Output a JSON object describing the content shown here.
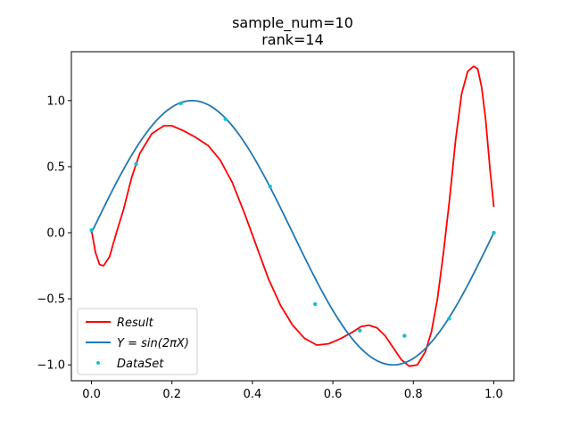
{
  "chart_data": {
    "type": "line",
    "title": "sample_num=10",
    "subtitle": "rank=14",
    "xlabel": "",
    "ylabel": "",
    "xlim": [
      -0.05,
      1.05
    ],
    "ylim": [
      -1.12,
      1.37
    ],
    "xticks": [
      0.0,
      0.2,
      0.4,
      0.6,
      0.8,
      1.0
    ],
    "xtick_labels": [
      "0.0",
      "0.2",
      "0.4",
      "0.6",
      "0.8",
      "1.0"
    ],
    "yticks": [
      -1.0,
      -0.5,
      0.0,
      0.5,
      1.0
    ],
    "ytick_labels": [
      "−1.0",
      "−0.5",
      "0.0",
      "0.5",
      "1.0"
    ],
    "grid": false,
    "legend_position": "lower-left",
    "series": [
      {
        "name": "Result",
        "kind": "line",
        "color": "#ff0000",
        "x": [
          0.0,
          0.01,
          0.02,
          0.03,
          0.045,
          0.06,
          0.08,
          0.1,
          0.12,
          0.15,
          0.18,
          0.2,
          0.23,
          0.26,
          0.29,
          0.32,
          0.35,
          0.38,
          0.41,
          0.44,
          0.47,
          0.5,
          0.53,
          0.56,
          0.59,
          0.62,
          0.65,
          0.67,
          0.69,
          0.71,
          0.73,
          0.75,
          0.77,
          0.79,
          0.81,
          0.83,
          0.845,
          0.86,
          0.875,
          0.89,
          0.905,
          0.92,
          0.935,
          0.95,
          0.96,
          0.97,
          0.98,
          0.99,
          1.0
        ],
        "y": [
          0.02,
          -0.15,
          -0.24,
          -0.25,
          -0.18,
          -0.02,
          0.18,
          0.42,
          0.6,
          0.75,
          0.81,
          0.81,
          0.77,
          0.72,
          0.66,
          0.55,
          0.38,
          0.15,
          -0.1,
          -0.35,
          -0.55,
          -0.7,
          -0.8,
          -0.85,
          -0.84,
          -0.8,
          -0.75,
          -0.71,
          -0.7,
          -0.72,
          -0.78,
          -0.87,
          -0.96,
          -1.01,
          -1.0,
          -0.9,
          -0.75,
          -0.5,
          -0.15,
          0.25,
          0.7,
          1.05,
          1.22,
          1.26,
          1.24,
          1.1,
          0.85,
          0.5,
          0.2
        ]
      },
      {
        "name": "Y = sin(2πX)",
        "kind": "line",
        "color": "#1f77b4",
        "function": "sin(2*pi*x)",
        "domain": [
          0,
          1
        ]
      },
      {
        "name": "DataSet",
        "kind": "scatter",
        "color": "#17becf",
        "x": [
          0.0,
          0.111,
          0.222,
          0.333,
          0.444,
          0.556,
          0.667,
          0.778,
          0.889,
          1.0
        ],
        "y": [
          0.02,
          0.52,
          0.98,
          0.86,
          0.35,
          -0.54,
          -0.74,
          -0.78,
          -0.65,
          0.0
        ]
      }
    ]
  },
  "legend": {
    "items": [
      "Result",
      "DataSet"
    ],
    "sine_prefix": "Y",
    "sine_eq": " = ",
    "sine_func": "sin(2",
    "sine_pi": "π",
    "sine_var": "X",
    "sine_close": ")"
  }
}
